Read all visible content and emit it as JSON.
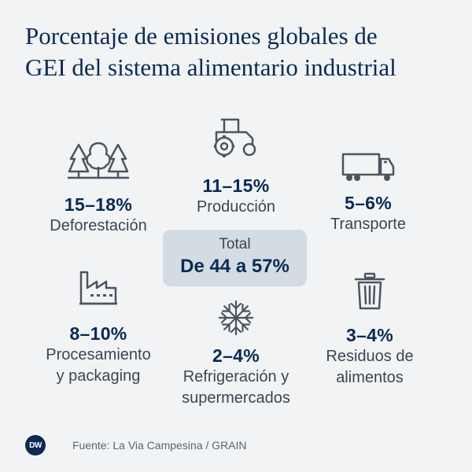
{
  "title": {
    "line1": "Porcentaje de emisiones globales de",
    "line2": "GEI del sistema alimentario industrial"
  },
  "items": {
    "deforestation": {
      "icon": "forest-icon",
      "percent": "15–18%",
      "label": "Deforestación"
    },
    "production": {
      "icon": "tractor-icon",
      "percent": "11–15%",
      "label": "Producción"
    },
    "transport": {
      "icon": "truck-icon",
      "percent": "5–6%",
      "label": "Transporte"
    },
    "processing": {
      "icon": "factory-icon",
      "percent": "8–10%",
      "label_line1": "Procesamiento",
      "label_line2": "y packaging"
    },
    "refrigeration": {
      "icon": "snowflake-icon",
      "percent": "2–4%",
      "label_line1": "Refrigeración y",
      "label_line2": "supermercados"
    },
    "waste": {
      "icon": "trash-bin-icon",
      "percent": "3–4%",
      "label_line1": "Residuos de",
      "label_line2": "alimentos"
    }
  },
  "total": {
    "label": "Total",
    "value": "De 44 a 57%"
  },
  "footer": {
    "logo": "DW",
    "source": "Fuente: La Via Campesina / GRAIN"
  },
  "colors": {
    "background": "#f1f3f5",
    "title": "#0a2a52",
    "icon": "#4a5560",
    "total_box": "#d4dce3"
  }
}
